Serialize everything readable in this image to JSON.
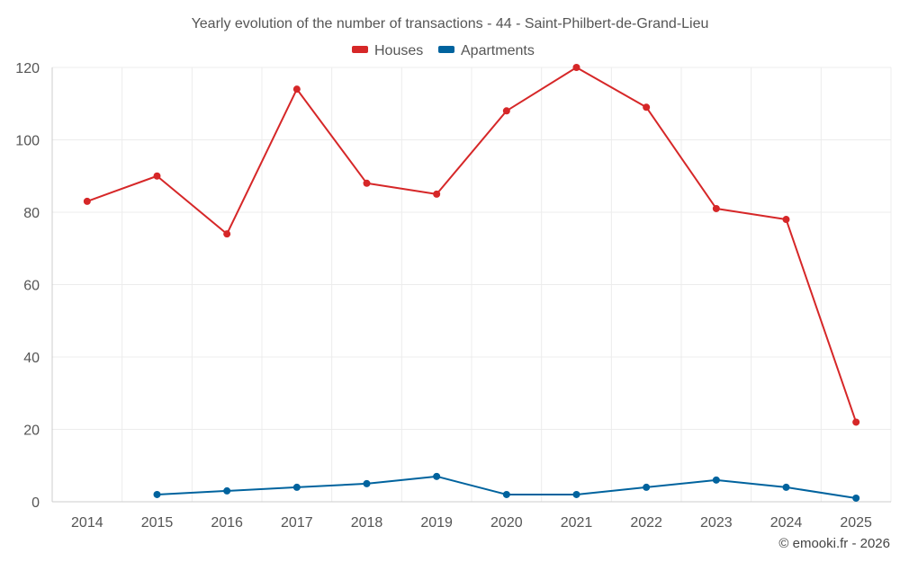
{
  "chart_data": {
    "type": "line",
    "title": "Yearly evolution of the number of transactions - 44 - Saint-Philbert-de-Grand-Lieu",
    "categories": [
      "2014",
      "2015",
      "2016",
      "2017",
      "2018",
      "2019",
      "2020",
      "2021",
      "2022",
      "2023",
      "2024",
      "2025"
    ],
    "yticks": [
      "0",
      "20",
      "40",
      "60",
      "80",
      "100",
      "120"
    ],
    "ylim": [
      0,
      120
    ],
    "grid": true,
    "legend_position": "top-center",
    "series": [
      {
        "name": "Houses",
        "color": "#d62728",
        "values": [
          83,
          90,
          74,
          114,
          88,
          85,
          108,
          120,
          109,
          81,
          78,
          22
        ]
      },
      {
        "name": "Apartments",
        "color": "#00639e",
        "values": [
          null,
          2,
          3,
          4,
          5,
          7,
          2,
          2,
          4,
          6,
          4,
          1
        ]
      }
    ],
    "credit": "© emooki.fr - 2026"
  }
}
